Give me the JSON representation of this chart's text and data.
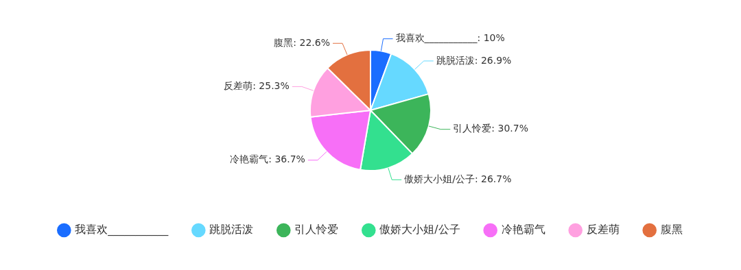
{
  "chart_data": {
    "type": "pie",
    "categories": [
      "我喜欢___________",
      "跳脱活泼",
      "引人怜爱",
      "傲娇大小姐/公子",
      "冷艳霸气",
      "反差萌",
      "腹黑"
    ],
    "values": [
      10,
      26.9,
      30.7,
      26.7,
      36.7,
      25.3,
      22.6
    ],
    "value_labels": [
      ": 10%",
      ": 26.9%",
      ": 30.7%",
      ": 26.7%",
      ": 36.7%",
      ": 25.3%",
      ": 22.6%"
    ],
    "colors": [
      "#1a6dff",
      "#66d9ff",
      "#3cb55a",
      "#33e08f",
      "#f76ff7",
      "#ffa0e0",
      "#e3703f"
    ],
    "legend": "bottom"
  }
}
